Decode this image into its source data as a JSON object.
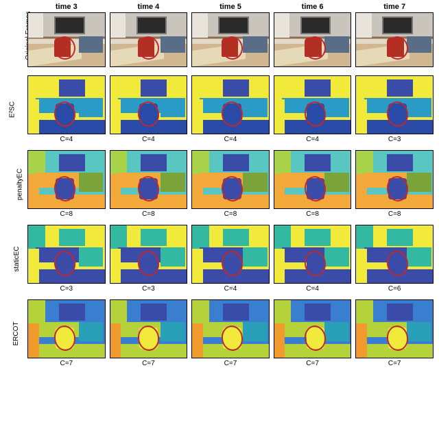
{
  "columns": [
    {
      "label": "time 3"
    },
    {
      "label": "time 4"
    },
    {
      "label": "time 5"
    },
    {
      "label": "time 6"
    },
    {
      "label": "time 7"
    }
  ],
  "rows": [
    {
      "label": "Original Frames",
      "kind": "photo",
      "chair_left_pct": [
        34,
        36,
        38,
        40,
        40
      ],
      "captions": [
        "",
        "",
        "",
        "",
        ""
      ]
    },
    {
      "label": "E²SC",
      "kind": "seg",
      "bg": "#f2ea3a",
      "sq": "#3b4ba8",
      "mid": "#2a9bc7",
      "chair": "#2a4aa8",
      "rchair": "#2a9bc7",
      "floor": "#2a4aa8",
      "leftblock": "#f2ea3a",
      "stripL": "#f2ea3a",
      "captions": [
        "C=4",
        "C=4",
        "C=4",
        "C=4",
        "C=3"
      ]
    },
    {
      "label": "penaltyEC",
      "kind": "seg",
      "bg": "#59c6c2",
      "sq": "#3b4ba8",
      "mid": "#f3a93a",
      "chair": "#3b4ba8",
      "rchair": "#7aa33a",
      "floor": "#f3a93a",
      "leftblock": "#a7d24a",
      "stripL": "#f3a93a",
      "captions": [
        "C=8",
        "C=8",
        "C=8",
        "C=8",
        "C=8"
      ]
    },
    {
      "label": "staticEC",
      "kind": "seg",
      "bg": "#f2ea3a",
      "sq": "#33b8a1",
      "mid": "#3b4ba8",
      "chair": "#3b4ba8",
      "rchair": "#33b8a1",
      "floor": "#3b4ba8",
      "leftblock": "#33b8a1",
      "stripL": "#f2ea3a",
      "captions": [
        "C=3",
        "C=3",
        "C=4",
        "C=4",
        "C=6"
      ]
    },
    {
      "label": "ERCOT",
      "kind": "seg",
      "bg": "#3a7fcf",
      "sq": "#3b4ba8",
      "mid": "#b6d23a",
      "chair": "#f2ea3a",
      "rchair": "#2aa0b8",
      "floor": "#b6d23a",
      "leftblock": "#b6d23a",
      "stripL": "#f19a2e",
      "captions": [
        "C=7",
        "C=7",
        "C=7",
        "C=7",
        "C=7"
      ]
    }
  ],
  "ring_color": "#c1272d",
  "ring_shift_pct": [
    0,
    2,
    4,
    6,
    6
  ]
}
